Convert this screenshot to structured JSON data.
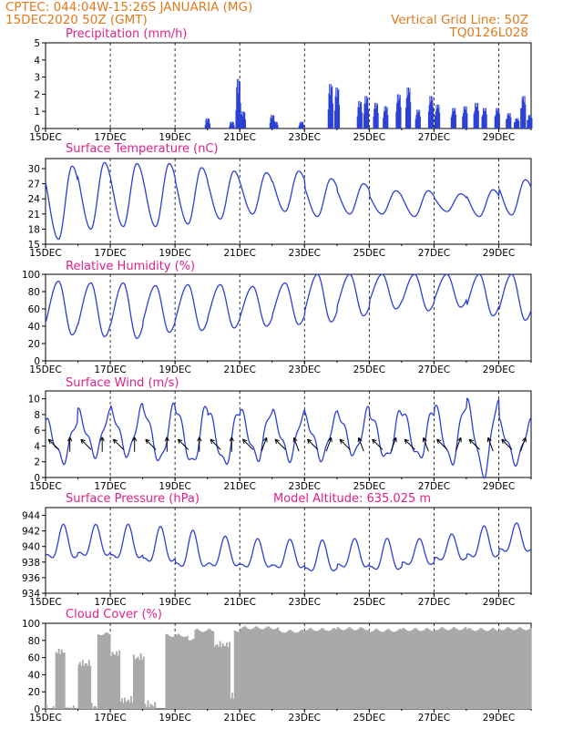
{
  "header": {
    "line1": "CPTEC:   044:04W-15:26S   JANUARIA (MG)",
    "line2": "15DEC2020 50Z (GMT)",
    "right1": "Vertical Grid Line: 50Z",
    "right2": "TQ0126L028"
  },
  "colors": {
    "header": "#e07a1a",
    "title": "#e0208a",
    "line": "#2a3fd6",
    "cloud": "#a9a9a9",
    "wind_arrow": "#000000"
  },
  "x_axis": {
    "tick_labels": [
      "15DEC",
      "17DEC",
      "19DEC",
      "21DEC",
      "23DEC",
      "25DEC",
      "27DEC",
      "29DEC"
    ],
    "tick_days": [
      15,
      17,
      19,
      21,
      23,
      25,
      27,
      29
    ],
    "range_days": [
      15,
      30
    ]
  },
  "chart_data": [
    {
      "id": "precip",
      "type": "bar",
      "title": "Precipitation (mm/h)",
      "ylim": [
        0,
        5
      ],
      "yticks": [
        0,
        1,
        2,
        3,
        4,
        5
      ],
      "bursts": [
        {
          "day": 20.0,
          "peak": 0.6
        },
        {
          "day": 20.75,
          "peak": 0.4
        },
        {
          "day": 20.95,
          "peak": 2.9
        },
        {
          "day": 21.1,
          "peak": 1.0
        },
        {
          "day": 22.0,
          "peak": 0.8
        },
        {
          "day": 22.1,
          "peak": 0.4
        },
        {
          "day": 22.9,
          "peak": 0.4
        },
        {
          "day": 23.8,
          "peak": 2.6
        },
        {
          "day": 24.0,
          "peak": 2.4
        },
        {
          "day": 24.7,
          "peak": 1.6
        },
        {
          "day": 24.9,
          "peak": 1.9
        },
        {
          "day": 25.2,
          "peak": 1.5
        },
        {
          "day": 25.5,
          "peak": 1.3
        },
        {
          "day": 25.9,
          "peak": 2.0
        },
        {
          "day": 26.2,
          "peak": 2.4
        },
        {
          "day": 26.5,
          "peak": 1.1
        },
        {
          "day": 26.9,
          "peak": 1.9
        },
        {
          "day": 27.1,
          "peak": 1.4
        },
        {
          "day": 27.6,
          "peak": 1.2
        },
        {
          "day": 27.95,
          "peak": 1.3
        },
        {
          "day": 28.3,
          "peak": 1.5
        },
        {
          "day": 28.55,
          "peak": 1.2
        },
        {
          "day": 28.95,
          "peak": 1.2
        },
        {
          "day": 29.3,
          "peak": 0.9
        },
        {
          "day": 29.55,
          "peak": 0.6
        },
        {
          "day": 29.75,
          "peak": 1.9
        },
        {
          "day": 29.95,
          "peak": 0.8
        }
      ]
    },
    {
      "id": "temp",
      "type": "line",
      "title": "Surface Temperature (nC)",
      "ylim": [
        15,
        32
      ],
      "yticks": [
        15,
        18,
        21,
        24,
        27,
        30
      ],
      "daily_max": [
        30.5,
        31.2,
        31.0,
        31.0,
        30.2,
        29.5,
        29.2,
        29.5,
        28.0,
        27.0,
        25.6,
        25.6,
        25.0,
        25.8,
        27.8
      ],
      "daily_min": [
        16.0,
        18.0,
        18.5,
        18.5,
        19.0,
        20.0,
        21.0,
        21.5,
        20.5,
        21.0,
        21.0,
        20.5,
        21.5,
        20.5,
        20.8
      ]
    },
    {
      "id": "rh",
      "type": "line",
      "title": "Relative Humidity (%)",
      "ylim": [
        0,
        100
      ],
      "yticks": [
        0,
        20,
        40,
        60,
        80,
        100
      ],
      "daily_max": [
        92,
        90,
        90,
        87,
        88,
        88,
        86,
        90,
        100,
        100,
        100,
        100,
        100,
        100,
        100
      ],
      "daily_min": [
        30,
        28,
        26,
        33,
        35,
        38,
        40,
        42,
        45,
        52,
        60,
        58,
        62,
        52,
        47
      ]
    },
    {
      "id": "wind",
      "type": "line",
      "title": "Surface Wind (m/s)",
      "ylim": [
        0,
        11
      ],
      "yticks": [
        0,
        2,
        4,
        6,
        8,
        10
      ],
      "daily_max": [
        7.2,
        8.3,
        8.8,
        9.0,
        9.0,
        8.5,
        8.5,
        8.2,
        7.8,
        8.5,
        8.3,
        8.5,
        9.2,
        9.7,
        7.0
      ],
      "daily_min": [
        2.2,
        3.0,
        3.0,
        2.2,
        1.8,
        1.8,
        2.5,
        2.5,
        2.5,
        3.0,
        2.5,
        2.5,
        2.0,
        0.5,
        2.0
      ],
      "arrow_directions_deg": [
        225,
        180,
        225,
        180,
        225,
        180,
        225,
        180,
        225,
        180,
        225,
        180,
        225,
        160,
        225,
        200,
        225,
        160,
        225,
        200,
        225,
        160,
        225,
        200,
        225,
        160,
        225,
        200,
        225,
        160
      ]
    },
    {
      "id": "pres",
      "type": "line",
      "title": "Surface Pressure (hPa)",
      "annotation": "Model Altitude: 635.025 m",
      "ylim": [
        934,
        945
      ],
      "yticks": [
        934,
        936,
        938,
        940,
        942,
        944
      ],
      "mean": [
        940.0,
        940.2,
        940.0,
        939.6,
        939.0,
        938.8,
        938.6,
        938.5,
        938.2,
        938.6,
        938.4,
        938.8,
        939.4,
        940.0,
        940.6
      ],
      "amplitude": [
        2.6,
        2.4,
        2.6,
        2.7,
        2.8,
        2.3,
        2.2,
        2.2,
        2.4,
        2.2,
        2.4,
        2.0,
        2.0,
        2.4,
        2.2
      ]
    },
    {
      "id": "cloud",
      "type": "area",
      "title": "Cloud Cover (%)",
      "ylim": [
        0,
        100
      ],
      "yticks": [
        0,
        20,
        40,
        60,
        80,
        100
      ],
      "segments": [
        {
          "day0": 15.0,
          "day1": 15.3,
          "value": 5
        },
        {
          "day0": 15.3,
          "day1": 15.6,
          "value": 72
        },
        {
          "day0": 15.6,
          "day1": 16.0,
          "value": 5
        },
        {
          "day0": 16.0,
          "day1": 16.4,
          "value": 58
        },
        {
          "day0": 16.4,
          "day1": 16.6,
          "value": 8
        },
        {
          "day0": 16.6,
          "day1": 17.0,
          "value": 90
        },
        {
          "day0": 17.0,
          "day1": 17.3,
          "value": 70
        },
        {
          "day0": 17.3,
          "day1": 17.7,
          "value": 15
        },
        {
          "day0": 17.7,
          "day1": 18.05,
          "value": 65
        },
        {
          "day0": 18.05,
          "day1": 18.4,
          "value": 10
        },
        {
          "day0": 18.4,
          "day1": 18.7,
          "value": 0
        },
        {
          "day0": 18.7,
          "day1": 19.4,
          "value": 88
        },
        {
          "day0": 19.4,
          "day1": 19.6,
          "value": 84
        },
        {
          "day0": 19.6,
          "day1": 20.2,
          "value": 94
        },
        {
          "day0": 20.2,
          "day1": 20.7,
          "value": 80
        },
        {
          "day0": 20.7,
          "day1": 20.82,
          "value": 20
        },
        {
          "day0": 20.82,
          "day1": 21.0,
          "value": 94
        },
        {
          "day0": 21.0,
          "day1": 22.2,
          "value": 97
        },
        {
          "day0": 22.2,
          "day1": 23.0,
          "value": 93
        },
        {
          "day0": 23.0,
          "day1": 24.0,
          "value": 95
        },
        {
          "day0": 24.0,
          "day1": 25.0,
          "value": 96
        },
        {
          "day0": 25.0,
          "day1": 26.0,
          "value": 94
        },
        {
          "day0": 26.0,
          "day1": 27.0,
          "value": 95
        },
        {
          "day0": 27.0,
          "day1": 28.0,
          "value": 96
        },
        {
          "day0": 28.0,
          "day1": 29.0,
          "value": 95
        },
        {
          "day0": 29.0,
          "day1": 30.0,
          "value": 96
        }
      ]
    }
  ]
}
